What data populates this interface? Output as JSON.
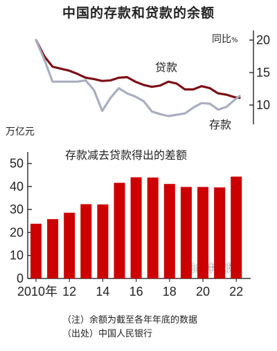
{
  "title": "中国的存款和贷款的余额",
  "notes": [
    "（注）余额为截至各年年底的数据",
    "（出处）中国人民银行"
  ],
  "watermark": "日经中文网",
  "colors": {
    "loan": "#7a0f16",
    "deposit": "#a9adbf",
    "bar": "#cc0000",
    "axis": "#333333"
  },
  "chart_data": [
    {
      "type": "line",
      "title": "",
      "unit_label": "同比",
      "unit_suffix": "%",
      "y_ticks": [
        "20",
        "15",
        "10"
      ],
      "ylim": [
        8,
        21
      ],
      "x": [
        2010.0,
        2010.5,
        2011.0,
        2011.5,
        2012.0,
        2012.5,
        2013.0,
        2013.5,
        2014.0,
        2014.5,
        2015.0,
        2015.5,
        2016.0,
        2016.5,
        2017.0,
        2017.5,
        2018.0,
        2018.5,
        2019.0,
        2019.5,
        2020.0,
        2020.5,
        2021.0,
        2021.5,
        2022.0,
        2022.3
      ],
      "series": [
        {
          "name": "贷款",
          "values": [
            20.0,
            17.5,
            15.9,
            15.6,
            15.3,
            14.8,
            14.2,
            14.0,
            13.7,
            13.8,
            14.2,
            14.3,
            13.6,
            13.1,
            12.8,
            13.0,
            13.6,
            13.3,
            12.4,
            12.4,
            12.9,
            12.6,
            11.8,
            11.6,
            11.2,
            11.1
          ]
        },
        {
          "name": "存款",
          "values": [
            20.0,
            17.0,
            13.6,
            13.6,
            13.6,
            13.6,
            13.8,
            12.3,
            9.1,
            11.1,
            12.6,
            11.8,
            11.3,
            10.6,
            9.0,
            8.6,
            8.3,
            8.5,
            8.7,
            9.6,
            10.3,
            10.2,
            9.3,
            9.7,
            10.8,
            11.4
          ]
        }
      ]
    },
    {
      "type": "bar",
      "title": "存款减去贷款得出的差额",
      "ylabel": "万亿元",
      "ylim": [
        0,
        55
      ],
      "y_ticks": [
        "0",
        "10",
        "20",
        "30",
        "40",
        "50"
      ],
      "categories": [
        "2010",
        "2011",
        "2012",
        "2013",
        "2014",
        "2015",
        "2016",
        "2017",
        "2018",
        "2019",
        "2020",
        "2021",
        "2022"
      ],
      "x_tick_labels": [
        "2010年",
        "12",
        "14",
        "16",
        "18",
        "20",
        "22"
      ],
      "values": [
        23.8,
        25.8,
        28.6,
        32.3,
        32.2,
        41.6,
        44.0,
        43.9,
        41.1,
        39.8,
        39.8,
        39.6,
        44.3
      ]
    }
  ]
}
